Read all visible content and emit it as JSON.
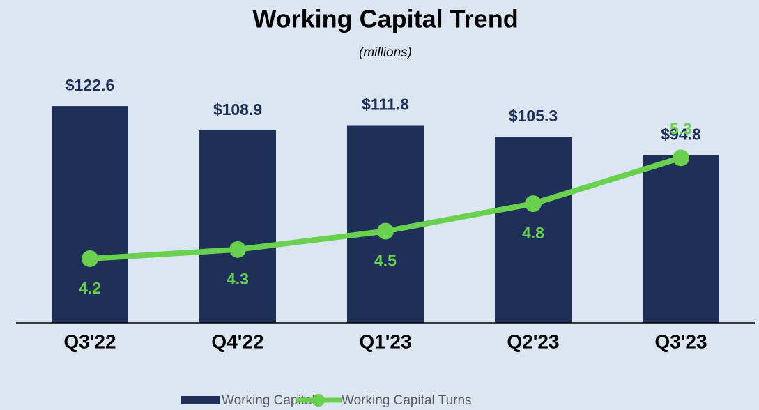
{
  "chart_data": {
    "type": "bar_line",
    "title": "Working Capital Trend",
    "subtitle": "(millions)",
    "categories": [
      "Q3'22",
      "Q4'22",
      "Q1'23",
      "Q2'23",
      "Q3'23"
    ],
    "series": [
      {
        "name": "Working Capital",
        "type": "bar",
        "color": "#1f3058",
        "values": [
          122.6,
          108.9,
          111.8,
          105.3,
          94.8
        ],
        "value_labels": [
          "$122.6",
          "$108.9",
          "$111.8",
          "$105.3",
          "$94.8"
        ]
      },
      {
        "name": "Working Capital Turns",
        "type": "line",
        "axis": "y2",
        "color": "#6ad04f",
        "values": [
          4.2,
          4.3,
          4.5,
          4.8,
          5.3
        ]
      }
    ],
    "ylim": [
      0,
      140
    ],
    "y2lim": [
      3.5,
      6.2
    ]
  }
}
